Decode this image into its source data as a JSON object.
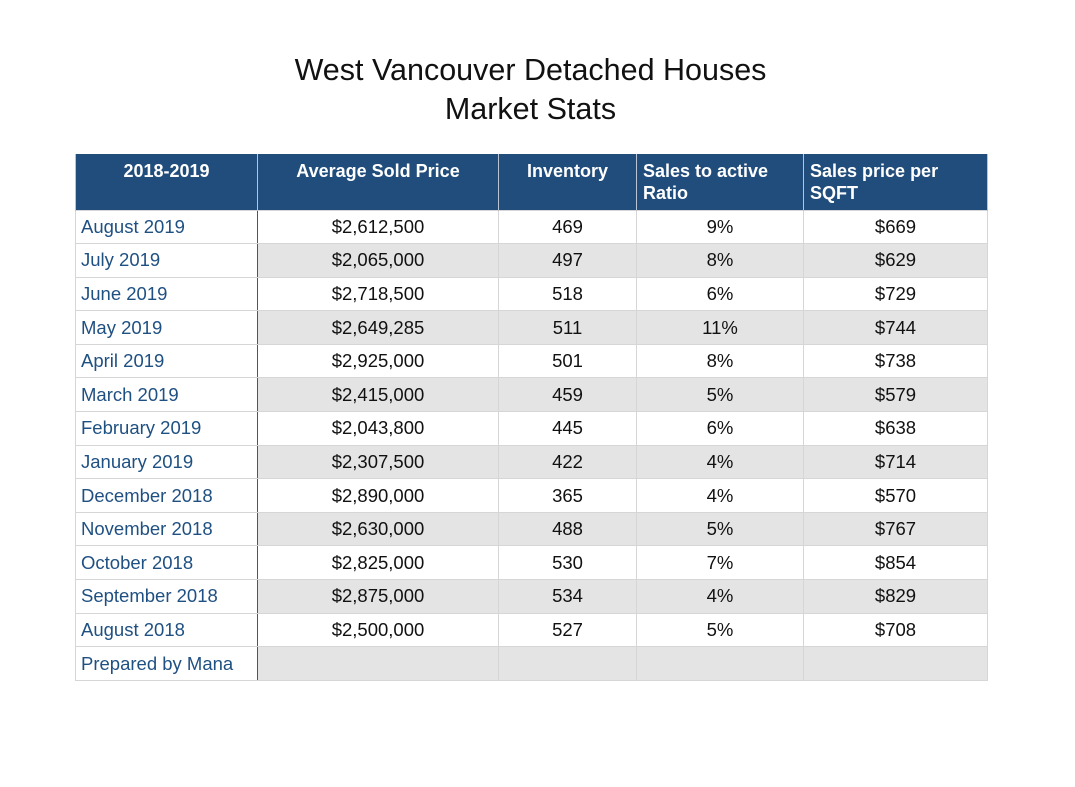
{
  "title": {
    "line1": "West Vancouver Detached Houses",
    "line2": "Market Stats"
  },
  "table": {
    "headers": [
      "2018-2019",
      "Average Sold Price",
      "Inventory",
      "Sales to active Ratio",
      "Sales price per SQFT"
    ],
    "rows": [
      [
        "August 2019",
        "$2,612,500",
        "469",
        "9%",
        "$669"
      ],
      [
        "July 2019",
        "$2,065,000",
        "497",
        "8%",
        "$629"
      ],
      [
        "June 2019",
        "$2,718,500",
        "518",
        "6%",
        "$729"
      ],
      [
        "May 2019",
        "$2,649,285",
        "511",
        "11%",
        "$744"
      ],
      [
        "April 2019",
        "$2,925,000",
        "501",
        "8%",
        "$738"
      ],
      [
        "March 2019",
        "$2,415,000",
        "459",
        "5%",
        "$579"
      ],
      [
        "February 2019",
        "$2,043,800",
        "445",
        "6%",
        "$638"
      ],
      [
        "January 2019",
        "$2,307,500",
        "422",
        "4%",
        "$714"
      ],
      [
        "December 2018",
        "$2,890,000",
        "365",
        "4%",
        "$570"
      ],
      [
        "November 2018",
        "$2,630,000",
        "488",
        "5%",
        "$767"
      ],
      [
        "October 2018",
        "$2,825,000",
        "530",
        "7%",
        "$854"
      ],
      [
        "September 2018",
        "$2,875,000",
        "534",
        "4%",
        "$829"
      ],
      [
        "August 2018",
        "$2,500,000",
        "527",
        "5%",
        "$708"
      ]
    ],
    "footer": [
      "Prepared by Mana",
      "",
      "",
      "",
      ""
    ]
  },
  "colors": {
    "header_bg": "#214d7c",
    "header_text": "#ffffff",
    "period_text": "#1f5082",
    "stripe_bg": "#e4e4e4"
  }
}
